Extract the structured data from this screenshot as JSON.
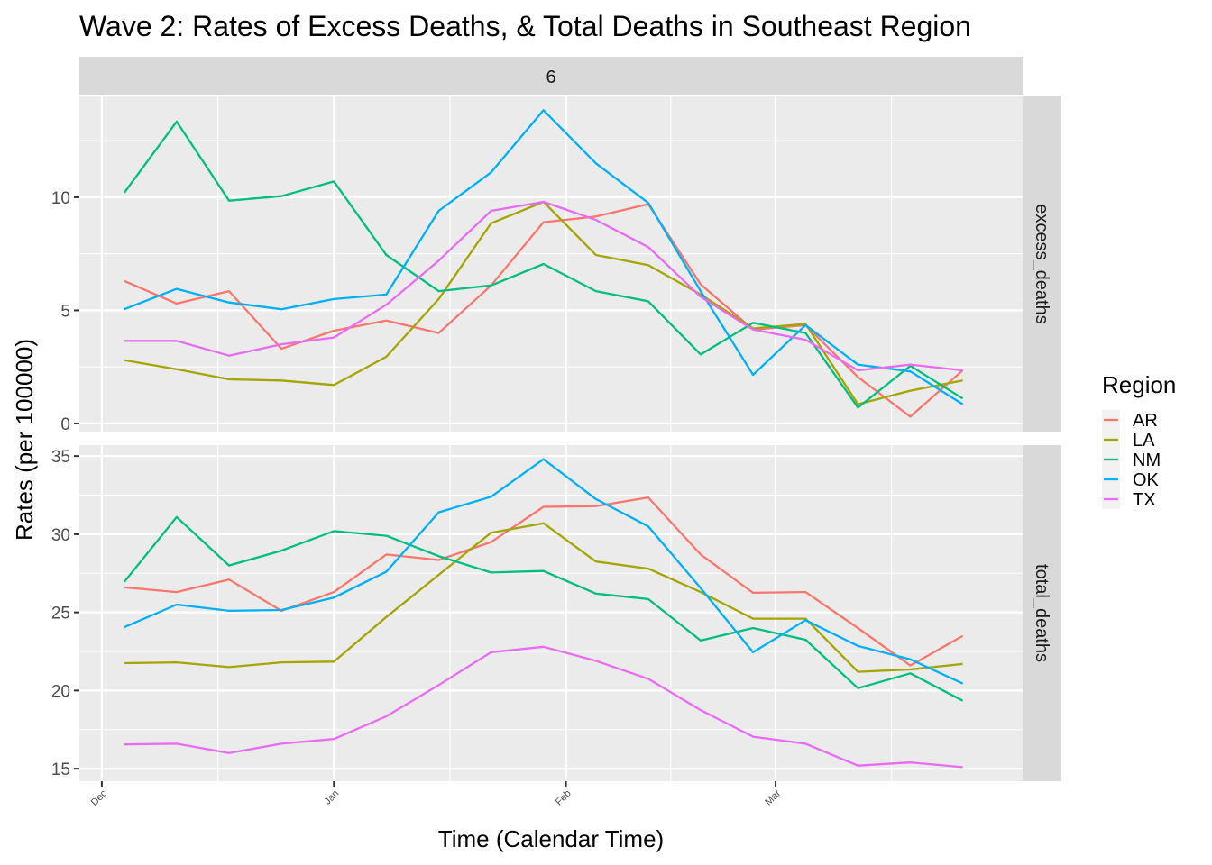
{
  "chart_data": {
    "type": "line",
    "title": "Wave 2: Rates of Excess Deaths, & Total Deaths in Southeast Region",
    "xlabel": "Time (Calendar Time)",
    "ylabel": "Rates (per 100000)",
    "facet_column_label": "6",
    "x_ticks": [
      "Dec",
      "Jan",
      "Feb",
      "Mar"
    ],
    "x_tick_dates": [
      "2020-12-01",
      "2021-01-01",
      "2021-02-01",
      "2021-03-01"
    ],
    "x_range": [
      "2020-11-28",
      "2021-04-03"
    ],
    "grid": true,
    "legend": {
      "title": "Region",
      "position": "right",
      "entries": [
        "AR",
        "LA",
        "NM",
        "OK",
        "TX"
      ]
    },
    "colors": {
      "AR": "#F8766D",
      "LA": "#A3A500",
      "NM": "#00BF7D",
      "OK": "#00B0F6",
      "TX": "#E76BF3"
    },
    "x": [
      "2020-12-04",
      "2020-12-11",
      "2020-12-18",
      "2020-12-25",
      "2021-01-01",
      "2021-01-08",
      "2021-01-15",
      "2021-01-22",
      "2021-01-29",
      "2021-02-05",
      "2021-02-12",
      "2021-02-19",
      "2021-02-26",
      "2021-03-05",
      "2021-03-12",
      "2021-03-19",
      "2021-03-26"
    ],
    "panels": [
      {
        "strip_label": "excess_deaths",
        "y_ticks": [
          0,
          5,
          10
        ],
        "ylim": [
          -0.4,
          14.5
        ],
        "series": [
          {
            "name": "AR",
            "values": [
              6.3,
              5.3,
              5.85,
              3.3,
              4.1,
              4.55,
              4.0,
              6.1,
              8.9,
              9.15,
              9.7,
              6.15,
              4.15,
              4.35,
              2.05,
              0.3,
              2.35
            ]
          },
          {
            "name": "LA",
            "values": [
              2.8,
              2.4,
              1.95,
              1.9,
              1.7,
              2.95,
              5.5,
              8.85,
              9.8,
              7.45,
              7.0,
              5.7,
              4.2,
              4.4,
              0.85,
              1.45,
              1.9
            ]
          },
          {
            "name": "NM",
            "values": [
              10.2,
              13.35,
              9.85,
              10.05,
              10.7,
              7.45,
              5.85,
              6.1,
              7.05,
              5.85,
              5.4,
              3.05,
              4.45,
              4.0,
              0.7,
              2.55,
              1.1
            ]
          },
          {
            "name": "OK",
            "values": [
              5.05,
              5.95,
              5.35,
              5.05,
              5.5,
              5.7,
              9.4,
              11.1,
              13.85,
              11.5,
              9.75,
              5.85,
              2.15,
              4.35,
              2.6,
              2.3,
              0.85
            ]
          },
          {
            "name": "TX",
            "values": [
              3.65,
              3.65,
              3.0,
              3.5,
              3.8,
              5.25,
              7.2,
              9.4,
              9.8,
              9.0,
              7.8,
              5.6,
              4.15,
              3.7,
              2.35,
              2.6,
              2.35
            ]
          }
        ]
      },
      {
        "strip_label": "total_deaths",
        "y_ticks": [
          15,
          20,
          25,
          30,
          35
        ],
        "ylim": [
          14.2,
          35.7
        ],
        "series": [
          {
            "name": "AR",
            "values": [
              26.6,
              26.3,
              27.1,
              25.1,
              26.3,
              28.7,
              28.35,
              29.5,
              31.75,
              31.8,
              32.35,
              28.7,
              26.25,
              26.3,
              24.0,
              21.6,
              23.5
            ]
          },
          {
            "name": "LA",
            "values": [
              21.75,
              21.8,
              21.5,
              21.8,
              21.85,
              24.7,
              27.4,
              30.1,
              30.7,
              28.25,
              27.8,
              26.3,
              24.6,
              24.6,
              21.2,
              21.35,
              21.7
            ]
          },
          {
            "name": "NM",
            "values": [
              26.95,
              31.1,
              28.0,
              28.95,
              30.2,
              29.9,
              28.6,
              27.55,
              27.65,
              26.2,
              25.85,
              23.2,
              24.0,
              23.25,
              20.15,
              21.1,
              19.35
            ]
          },
          {
            "name": "OK",
            "values": [
              24.05,
              25.5,
              25.1,
              25.15,
              25.95,
              27.6,
              31.4,
              32.4,
              34.8,
              32.25,
              30.5,
              26.55,
              22.45,
              24.5,
              22.85,
              22.0,
              20.45
            ]
          },
          {
            "name": "TX",
            "values": [
              16.55,
              16.6,
              16.0,
              16.6,
              16.9,
              18.35,
              20.35,
              22.45,
              22.8,
              21.9,
              20.75,
              18.75,
              17.05,
              16.6,
              15.2,
              15.4,
              15.1
            ]
          }
        ]
      }
    ]
  }
}
